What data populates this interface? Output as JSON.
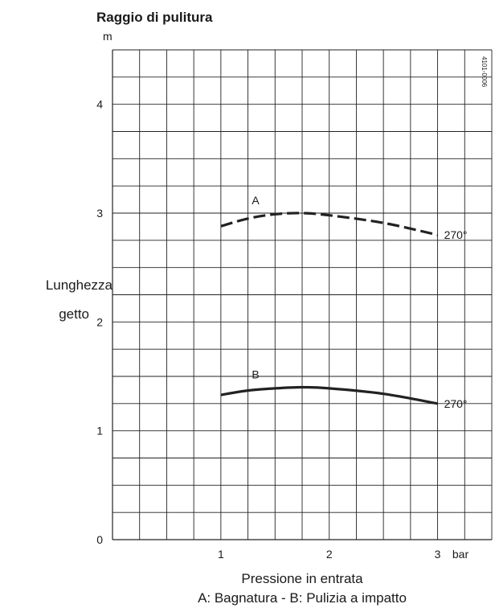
{
  "chart_data": {
    "type": "line",
    "title": "Raggio di pulitura",
    "y_unit": "m",
    "ylabel_line1": "Lunghezza",
    "ylabel_line2": "getto",
    "xlabel": "Pressione in entrata",
    "x_unit": "bar",
    "legend": "A: Bagnatura - B: Pulizia a impatto",
    "figure_code": "4101-0006",
    "xlim": [
      0,
      3.5
    ],
    "ylim": [
      0,
      4.5
    ],
    "x_ticks": [
      1,
      2,
      3
    ],
    "y_ticks": [
      0,
      1,
      2,
      3,
      4
    ],
    "grid": true,
    "series": [
      {
        "name": "A",
        "end_label": "270°",
        "dash": true,
        "x": [
          1.0,
          1.25,
          1.5,
          1.75,
          2.0,
          2.5,
          3.0
        ],
        "y": [
          2.88,
          2.95,
          2.99,
          3.0,
          2.98,
          2.91,
          2.8
        ]
      },
      {
        "name": "B",
        "end_label": "270°",
        "dash": false,
        "x": [
          1.0,
          1.25,
          1.5,
          1.75,
          2.0,
          2.5,
          3.0
        ],
        "y": [
          1.33,
          1.37,
          1.39,
          1.4,
          1.39,
          1.34,
          1.25
        ]
      }
    ]
  }
}
